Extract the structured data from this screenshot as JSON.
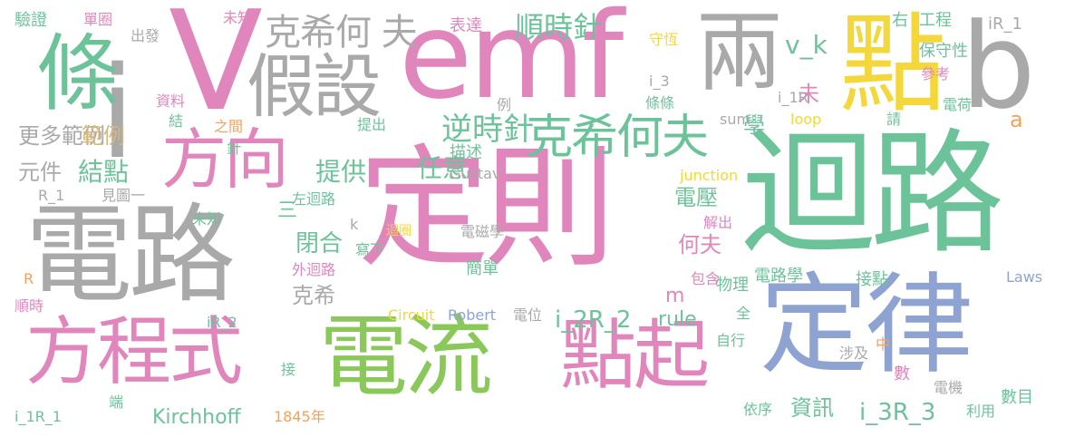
{
  "colors": {
    "green": "#8bc85a",
    "teal": "#6cc39a",
    "pink": "#e086bd",
    "gray": "#a9a9a9",
    "yellow": "#f4d73a",
    "blue": "#8fa3d3",
    "orange": "#f2a25c",
    "tan": "#d6b77d"
  },
  "words": [
    {
      "text": "定則",
      "color": "pink"
    },
    {
      "text": "迴路",
      "color": "teal"
    },
    {
      "text": "電路",
      "color": "gray"
    },
    {
      "text": "定律",
      "color": "blue"
    },
    {
      "text": "電流",
      "color": "green"
    },
    {
      "text": "emf",
      "color": "pink"
    },
    {
      "text": "V",
      "color": "pink"
    },
    {
      "text": "i",
      "color": "gray"
    },
    {
      "text": "兩",
      "color": "gray"
    },
    {
      "text": "點",
      "color": "yellow"
    },
    {
      "text": "b",
      "color": "gray"
    },
    {
      "text": "條",
      "color": "teal"
    },
    {
      "text": "方程式",
      "color": "pink"
    },
    {
      "text": "點起",
      "color": "pink"
    },
    {
      "text": "假設",
      "color": "gray"
    },
    {
      "text": "方向",
      "color": "pink"
    },
    {
      "text": "克希何夫",
      "color": "teal"
    },
    {
      "text": "克希何 夫",
      "color": "gray"
    },
    {
      "text": "順時針",
      "color": "teal"
    },
    {
      "text": "逆時針",
      "color": "teal"
    },
    {
      "text": "v_k",
      "color": "teal"
    },
    {
      "text": "未",
      "color": "pink"
    },
    {
      "text": "更多範例",
      "color": "gray"
    },
    {
      "text": "範例",
      "color": "tan"
    },
    {
      "text": "元件",
      "color": "gray"
    },
    {
      "text": "結點",
      "color": "teal"
    },
    {
      "text": "提供",
      "color": "teal"
    },
    {
      "text": "任意",
      "color": "teal"
    },
    {
      "text": "電壓",
      "color": "teal"
    },
    {
      "text": "學",
      "color": "teal"
    },
    {
      "text": "a",
      "color": "orange"
    },
    {
      "text": "何夫",
      "color": "pink"
    },
    {
      "text": "閉合",
      "color": "teal"
    },
    {
      "text": "克希",
      "color": "gray"
    },
    {
      "text": "三",
      "color": "teal"
    },
    {
      "text": "m",
      "color": "pink"
    },
    {
      "text": "i_2R_2",
      "color": "teal"
    },
    {
      "text": "rule",
      "color": "teal"
    },
    {
      "text": "i_3R_3",
      "color": "teal"
    },
    {
      "text": "資訊",
      "color": "teal"
    },
    {
      "text": "Kirchhoff",
      "color": "teal"
    },
    {
      "text": "1845年",
      "color": "orange"
    },
    {
      "text": "驗證",
      "color": "teal"
    },
    {
      "text": "單圈",
      "color": "pink"
    },
    {
      "text": "未知",
      "color": "pink"
    },
    {
      "text": "出發",
      "color": "gray"
    },
    {
      "text": "表達",
      "color": "pink"
    },
    {
      "text": "工程",
      "color": "teal"
    },
    {
      "text": "右",
      "color": "teal"
    },
    {
      "text": "iR_1",
      "color": "gray"
    },
    {
      "text": "守恆",
      "color": "yellow"
    },
    {
      "text": "保守性",
      "color": "teal"
    },
    {
      "text": "參考",
      "color": "pink"
    },
    {
      "text": "i_3",
      "color": "gray"
    },
    {
      "text": "資料",
      "color": "pink"
    },
    {
      "text": "結",
      "color": "teal"
    },
    {
      "text": "之間",
      "color": "orange"
    },
    {
      "text": "例",
      "color": "gray"
    },
    {
      "text": "條條",
      "color": "teal"
    },
    {
      "text": "i_1R",
      "color": "gray"
    },
    {
      "text": "sum_",
      "color": "gray"
    },
    {
      "text": "loop",
      "color": "yellow"
    },
    {
      "text": "電荷",
      "color": "teal"
    },
    {
      "text": "請",
      "color": "teal"
    },
    {
      "text": "提出",
      "color": "teal"
    },
    {
      "text": "描述",
      "color": "teal"
    },
    {
      "text": "Gustav",
      "color": "gray"
    },
    {
      "text": "針",
      "color": "teal"
    },
    {
      "text": "junction",
      "color": "yellow"
    },
    {
      "text": "見圖一",
      "color": "gray"
    },
    {
      "text": "R_1",
      "color": "gray"
    },
    {
      "text": "左迴路",
      "color": "teal"
    },
    {
      "text": "未知",
      "color": "teal"
    },
    {
      "text": "k",
      "color": "gray"
    },
    {
      "text": "迴圈",
      "color": "yellow"
    },
    {
      "text": "寫下",
      "color": "teal"
    },
    {
      "text": "電磁學",
      "color": "gray"
    },
    {
      "text": "解出",
      "color": "pink"
    },
    {
      "text": "外迴路",
      "color": "pink"
    },
    {
      "text": "簡單",
      "color": "teal"
    },
    {
      "text": "R",
      "color": "orange"
    },
    {
      "text": "包含",
      "color": "pink"
    },
    {
      "text": "物理",
      "color": "teal"
    },
    {
      "text": "電路學",
      "color": "teal"
    },
    {
      "text": "接點",
      "color": "teal"
    },
    {
      "text": "Laws",
      "color": "blue"
    },
    {
      "text": "Circuit",
      "color": "yellow"
    },
    {
      "text": "Robert",
      "color": "blue"
    },
    {
      "text": "電位",
      "color": "gray"
    },
    {
      "text": "全",
      "color": "teal"
    },
    {
      "text": "順時",
      "color": "pink"
    },
    {
      "text": "iR_2",
      "color": "teal"
    },
    {
      "text": "自行",
      "color": "teal"
    },
    {
      "text": "中",
      "color": "orange"
    },
    {
      "text": "接",
      "color": "teal"
    },
    {
      "text": "涉及",
      "color": "gray"
    },
    {
      "text": "數",
      "color": "pink"
    },
    {
      "text": "電機",
      "color": "gray"
    },
    {
      "text": "數目",
      "color": "teal"
    },
    {
      "text": "端",
      "color": "teal"
    },
    {
      "text": "依序",
      "color": "teal"
    },
    {
      "text": "利用",
      "color": "teal"
    },
    {
      "text": "i_1R_1",
      "color": "teal"
    }
  ]
}
